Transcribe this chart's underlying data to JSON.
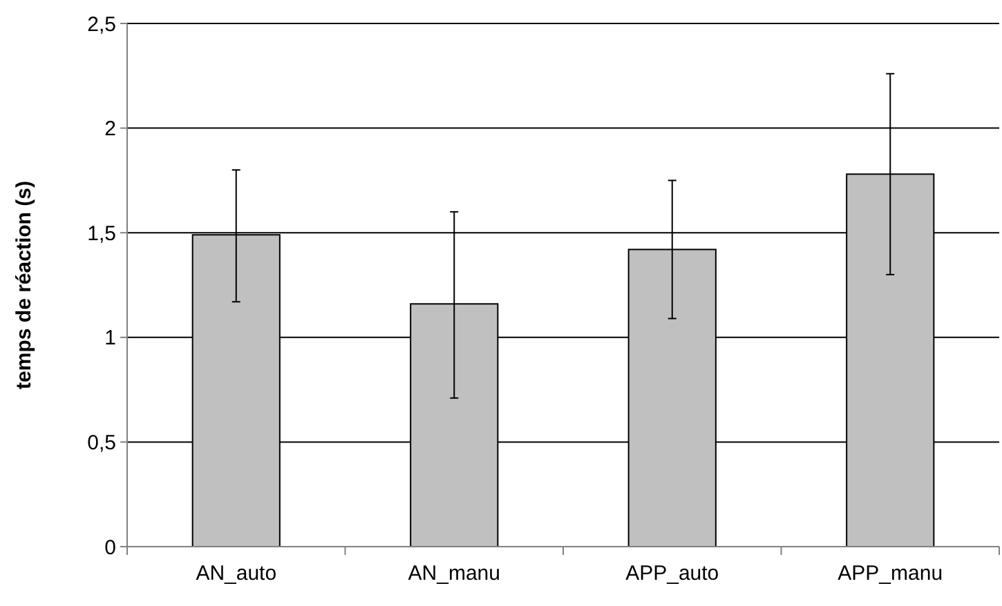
{
  "chart_data": {
    "type": "bar",
    "ylabel": "temps de réaction (s)",
    "categories": [
      "AN_auto",
      "AN_manu",
      "APP_auto",
      "APP_manu"
    ],
    "values": [
      1.49,
      1.16,
      1.42,
      1.78
    ],
    "color": "#c0c0c0",
    "errors": [
      [
        1.17,
        1.8
      ],
      [
        0.71,
        1.6
      ],
      [
        1.09,
        1.75
      ],
      [
        1.3,
        2.26
      ]
    ],
    "ylim": [
      0,
      2.5
    ],
    "yticks": [
      {
        "value": 0,
        "label": "0"
      },
      {
        "value": 0.5,
        "label": "0,5"
      },
      {
        "value": 1,
        "label": "1"
      },
      {
        "value": 1.5,
        "label": "1,5"
      },
      {
        "value": 2,
        "label": "2"
      },
      {
        "value": 2.5,
        "label": "2,5"
      }
    ],
    "grid": "y"
  }
}
